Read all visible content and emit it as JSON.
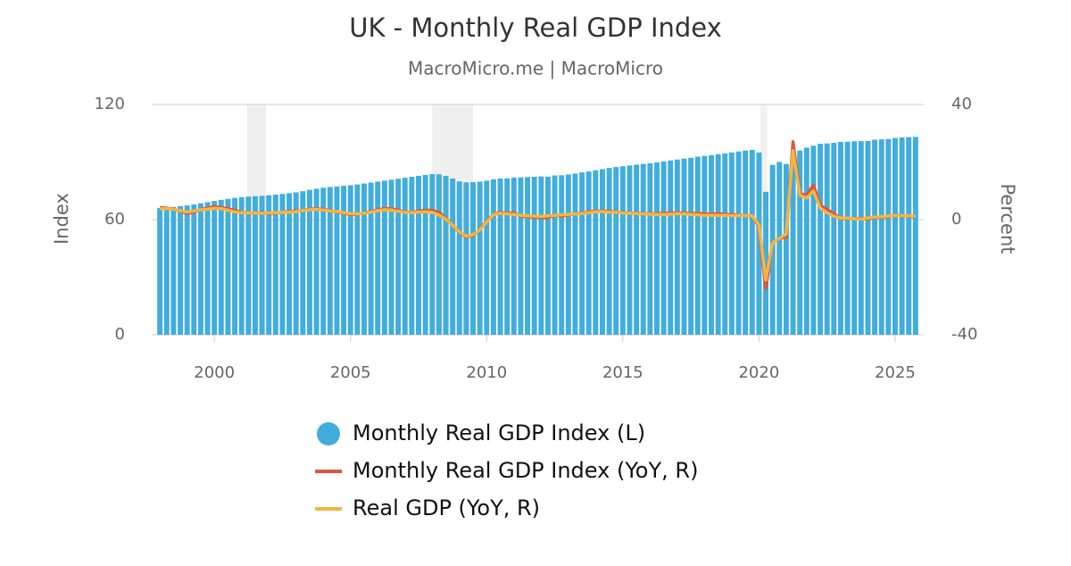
{
  "chart_data": {
    "type": "bar-line",
    "title": "UK - Monthly Real GDP Index",
    "subtitle": "MacroMicro.me | MacroMicro",
    "ylabel": "Index",
    "y2label": "Percent",
    "xlim": [
      1997.7,
      2026.05
    ],
    "xticks": [
      2000,
      2005,
      2010,
      2015,
      2020,
      2025
    ],
    "ylim": [
      0,
      120
    ],
    "yticks": [
      0,
      60,
      120
    ],
    "y2lim": [
      -40,
      40
    ],
    "y2ticks": [
      -40,
      0,
      40
    ],
    "grid": true,
    "shaded": [
      [
        2001.2,
        2001.9
      ],
      [
        2008.0,
        2009.5
      ],
      [
        2020.05,
        2020.3
      ]
    ],
    "x": [
      1998,
      1998.25,
      1998.5,
      1998.75,
      1999,
      1999.25,
      1999.5,
      1999.75,
      2000,
      2000.25,
      2000.5,
      2000.75,
      2001,
      2001.25,
      2001.5,
      2001.75,
      2002,
      2002.25,
      2002.5,
      2002.75,
      2003,
      2003.25,
      2003.5,
      2003.75,
      2004,
      2004.25,
      2004.5,
      2004.75,
      2005,
      2005.25,
      2005.5,
      2005.75,
      2006,
      2006.25,
      2006.5,
      2006.75,
      2007,
      2007.25,
      2007.5,
      2007.75,
      2008,
      2008.25,
      2008.5,
      2008.75,
      2009,
      2009.25,
      2009.5,
      2009.75,
      2010,
      2010.25,
      2010.5,
      2010.75,
      2011,
      2011.25,
      2011.5,
      2011.75,
      2012,
      2012.25,
      2012.5,
      2012.75,
      2013,
      2013.25,
      2013.5,
      2013.75,
      2014,
      2014.25,
      2014.5,
      2014.75,
      2015,
      2015.25,
      2015.5,
      2015.75,
      2016,
      2016.25,
      2016.5,
      2016.75,
      2017,
      2017.25,
      2017.5,
      2017.75,
      2018,
      2018.25,
      2018.5,
      2018.75,
      2019,
      2019.25,
      2019.5,
      2019.75,
      2020,
      2020.25,
      2020.5,
      2020.75,
      2021,
      2021.25,
      2021.5,
      2021.75,
      2022,
      2022.25,
      2022.5,
      2022.75,
      2023,
      2023.25,
      2023.5,
      2023.75,
      2024,
      2024.25,
      2024.5,
      2024.75,
      2025,
      2025.25,
      2025.5,
      2025.75
    ],
    "series": [
      {
        "name": "Monthly Real GDP Index (L)",
        "type": "bar",
        "axis": "y",
        "color": "#41addd",
        "values": [
          66,
          66.3,
          66.6,
          67,
          67.4,
          67.9,
          68.5,
          69.1,
          69.7,
          70.3,
          70.8,
          71.3,
          71.7,
          72,
          72.2,
          72.4,
          72.7,
          73,
          73.4,
          73.8,
          74.2,
          74.8,
          75.5,
          76.1,
          76.6,
          77,
          77.3,
          77.6,
          77.9,
          78.3,
          78.8,
          79.3,
          79.8,
          80.3,
          80.8,
          81.3,
          81.8,
          82.3,
          82.8,
          83.3,
          83.7,
          83.6,
          82.8,
          81.4,
          79.9,
          79.4,
          79.5,
          79.8,
          80.3,
          81,
          81.4,
          81.5,
          81.9,
          82,
          82.2,
          82.3,
          82.5,
          82.4,
          83,
          83.1,
          83.5,
          84,
          84.6,
          85.1,
          85.7,
          86.3,
          86.9,
          87.4,
          87.8,
          88.2,
          88.6,
          89,
          89.4,
          89.8,
          90.3,
          90.8,
          91.3,
          91.8,
          92.2,
          92.8,
          93.2,
          93.6,
          94.1,
          94.5,
          95,
          95.5,
          96,
          96.3,
          95,
          74.5,
          88.5,
          90,
          89,
          93,
          96,
          97.5,
          98.5,
          99.5,
          99.7,
          100,
          100.5,
          100.6,
          100.8,
          100.9,
          101,
          101.6,
          101.8,
          102,
          102.5,
          102.8,
          103,
          103.1
        ]
      },
      {
        "name": "Monthly Real GDP Index (YoY, R)",
        "type": "line",
        "axis": "y2",
        "color": "#e0553a",
        "values": [
          4.2,
          4,
          3.6,
          3,
          2,
          2.7,
          3.5,
          4,
          4.5,
          4.2,
          3.8,
          3.2,
          2.5,
          2.2,
          2.3,
          2.4,
          2,
          2.3,
          2.6,
          2.8,
          3,
          3.2,
          3.6,
          3.8,
          3.5,
          3.2,
          2.6,
          2.2,
          1.8,
          1.9,
          2.3,
          2.8,
          3.4,
          3.8,
          3.8,
          3.3,
          2.6,
          2.5,
          2.9,
          3.3,
          3.2,
          2.5,
          0.5,
          -2,
          -4.5,
          -6,
          -5.5,
          -3.5,
          -0.5,
          1.8,
          2.5,
          2.2,
          2.3,
          1.2,
          1,
          0.8,
          0.7,
          0.7,
          1.5,
          1.2,
          1.6,
          2.1,
          2.2,
          2.7,
          2.9,
          3,
          2.9,
          2.6,
          2.4,
          2.3,
          2.2,
          2.1,
          2,
          2,
          2.2,
          2.3,
          2.4,
          2.3,
          2.1,
          2.2,
          1.9,
          1.9,
          2.1,
          1.8,
          1.8,
          1.5,
          1.4,
          1.2,
          -2.5,
          -24,
          -8,
          -6.5,
          -6,
          27,
          9,
          8.5,
          12,
          5,
          3.5,
          2,
          0.5,
          0.3,
          0.4,
          0.4,
          0.2,
          0.8,
          0.8,
          1,
          1.6,
          1.3,
          1.2,
          1
        ]
      },
      {
        "name": "Real GDP (YoY, R)",
        "type": "line",
        "axis": "y2",
        "color": "#f5b53f",
        "values": [
          3.8,
          3.8,
          3.6,
          3.1,
          2.6,
          3,
          3.4,
          3.6,
          3.9,
          3.8,
          3.3,
          2.7,
          2.4,
          2.3,
          2.3,
          2.2,
          2.3,
          2.4,
          2.5,
          2.6,
          2.8,
          3.2,
          3.4,
          3.6,
          3.3,
          3,
          2.8,
          2.4,
          2.1,
          2,
          2.2,
          2.6,
          3.1,
          3.4,
          3.3,
          2.9,
          2.5,
          2.4,
          2.6,
          2.7,
          2.5,
          1.6,
          0.2,
          -2,
          -4.3,
          -5.8,
          -5.2,
          -3.6,
          -0.8,
          1.7,
          2.2,
          2,
          1.8,
          1.5,
          1.3,
          1.2,
          1.1,
          1.3,
          1.5,
          1.6,
          1.8,
          2,
          2.1,
          2.4,
          2.7,
          2.8,
          2.6,
          2.5,
          2.3,
          2.2,
          2.1,
          2,
          1.9,
          1.8,
          1.8,
          1.9,
          2.1,
          2,
          1.8,
          1.7,
          1.4,
          1.5,
          1.5,
          1.5,
          1.4,
          1.4,
          1.4,
          1.3,
          -2,
          -21,
          -8,
          -6.5,
          -5,
          24,
          8.5,
          7.5,
          10,
          4,
          2.4,
          1.2,
          0.6,
          0.5,
          0.3,
          0.2,
          0.6,
          0.9,
          1,
          1.2,
          1.5,
          1.4,
          1.3,
          1.2
        ]
      }
    ]
  }
}
